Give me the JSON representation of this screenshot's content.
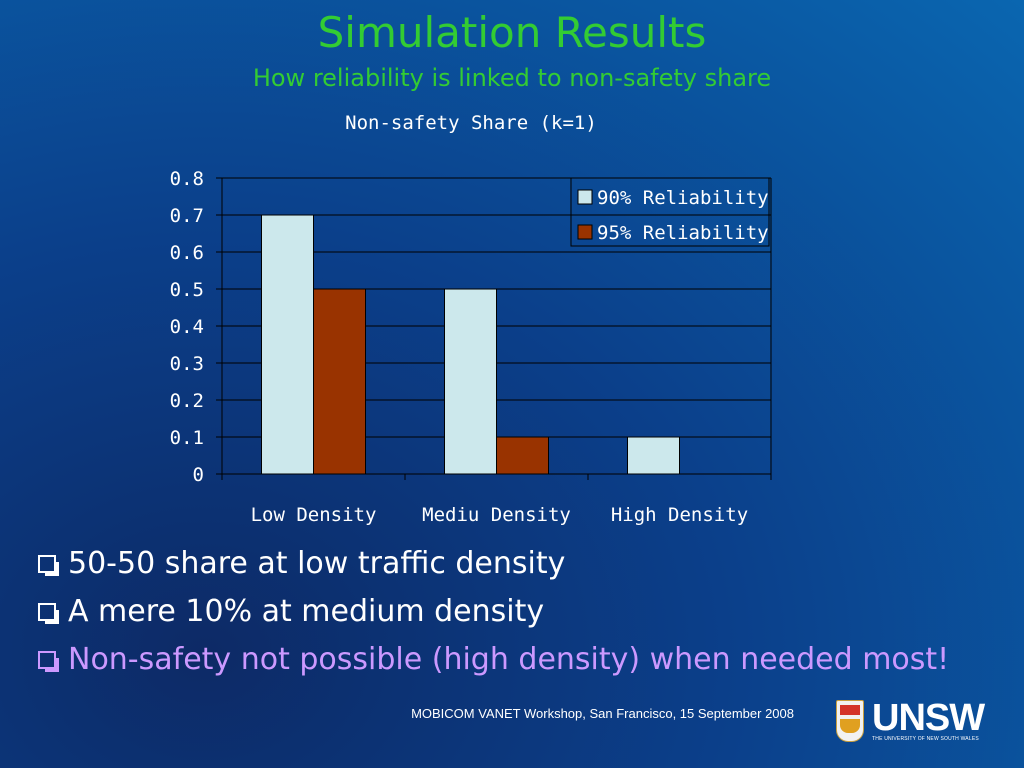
{
  "slide": {
    "title": "Simulation Results",
    "subtitle": "How reliability is linked to non-safety share"
  },
  "bullets": [
    {
      "text": "50-50 share at low traffic density",
      "highlight": false
    },
    {
      "text": "A mere 10% at medium density",
      "highlight": false
    },
    {
      "text": "Non-safety not possible (high density) when needed most!",
      "highlight": true
    }
  ],
  "footer": "MOBICOM VANET Workshop, San Francisco, 15 September 2008",
  "logo": {
    "wordmark": "UNSW",
    "tagline": "THE UNIVERSITY OF NEW SOUTH WALES"
  },
  "colors": {
    "title": "#33cc33",
    "highlight": "#cc99ff",
    "series_90": "#cce8ec",
    "series_95": "#993300"
  },
  "chart_data": {
    "type": "bar",
    "title": "Non-safety Share (k=1)",
    "categories": [
      "Low Density",
      "Mediu Density",
      "High Density"
    ],
    "series": [
      {
        "name": "90% Reliability",
        "values": [
          0.7,
          0.5,
          0.1
        ],
        "color": "#cce8ec"
      },
      {
        "name": "95% Reliability",
        "values": [
          0.5,
          0.1,
          0
        ],
        "color": "#993300"
      }
    ],
    "ylim": [
      0,
      0.8
    ],
    "yticks": [
      "0",
      "0.1",
      "0.2",
      "0.3",
      "0.4",
      "0.5",
      "0.6",
      "0.7",
      "0.8"
    ],
    "grid": true,
    "legend": "top-right"
  }
}
